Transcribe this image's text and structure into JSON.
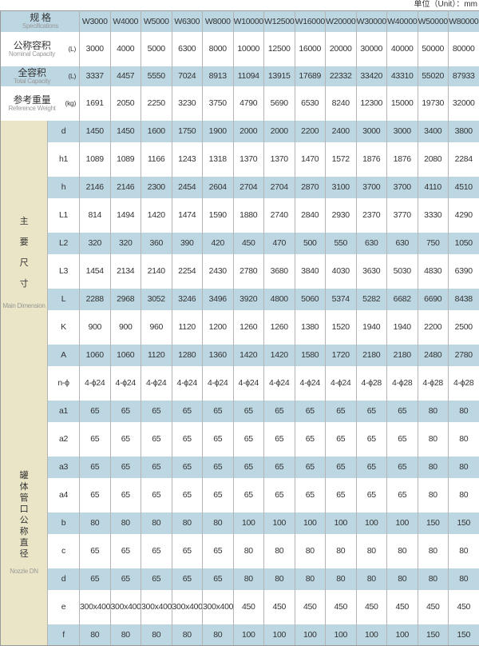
{
  "unit_note": "单位（Unit）：mm",
  "header": {
    "label_zh": "规 格",
    "label_en": "Specifications",
    "models": [
      "W3000",
      "W4000",
      "W5000",
      "W6300",
      "W8000",
      "W10000",
      "W12500",
      "W16000",
      "W20000",
      "W30000",
      "W40000",
      "W50000",
      "W80000"
    ]
  },
  "top_rows": [
    {
      "zh": "公称容积",
      "en": "Nominal Capacity",
      "unit": "(L)",
      "values": [
        "3000",
        "4000",
        "5000",
        "6300",
        "8000",
        "10000",
        "12500",
        "16000",
        "20000",
        "30000",
        "40000",
        "50000",
        "80000"
      ]
    },
    {
      "zh": "全容积",
      "en": "Total Capacity",
      "unit": "(L)",
      "values": [
        "3337",
        "4457",
        "5550",
        "7024",
        "8913",
        "11094",
        "13915",
        "17689",
        "22332",
        "33420",
        "43310",
        "55020",
        "87933"
      ]
    },
    {
      "zh": "参考重量",
      "en": "Reference Weight",
      "unit": "(kg)",
      "values": [
        "1691",
        "2050",
        "2250",
        "3230",
        "3750",
        "4790",
        "5690",
        "6530",
        "8240",
        "12300",
        "15000",
        "19730",
        "32000"
      ]
    }
  ],
  "groups": [
    {
      "zh_chars": [
        "主",
        "要",
        "尺",
        "寸"
      ],
      "en": "Main Dimension",
      "rows": [
        {
          "label": "d",
          "values": [
            "1450",
            "1450",
            "1600",
            "1750",
            "1900",
            "2000",
            "2000",
            "2200",
            "2400",
            "3000",
            "3000",
            "3400",
            "3800"
          ]
        },
        {
          "label": "h1",
          "values": [
            "1089",
            "1089",
            "1166",
            "1243",
            "1318",
            "1370",
            "1370",
            "1470",
            "1572",
            "1876",
            "1876",
            "2080",
            "2284"
          ]
        },
        {
          "label": "h",
          "values": [
            "2146",
            "2146",
            "2300",
            "2454",
            "2604",
            "2704",
            "2704",
            "2870",
            "3100",
            "3700",
            "3700",
            "4110",
            "4510"
          ]
        },
        {
          "label": "L1",
          "values": [
            "814",
            "1494",
            "1420",
            "1474",
            "1590",
            "1880",
            "2740",
            "2840",
            "2930",
            "2370",
            "3770",
            "3330",
            "4290"
          ]
        },
        {
          "label": "L2",
          "values": [
            "320",
            "320",
            "360",
            "390",
            "420",
            "450",
            "470",
            "500",
            "550",
            "630",
            "630",
            "750",
            "1050"
          ]
        },
        {
          "label": "L3",
          "values": [
            "1454",
            "2134",
            "2140",
            "2254",
            "2430",
            "2780",
            "3680",
            "3840",
            "4030",
            "3630",
            "5030",
            "4830",
            "6390"
          ]
        },
        {
          "label": "L",
          "values": [
            "2288",
            "2968",
            "3052",
            "3246",
            "3496",
            "3920",
            "4800",
            "5060",
            "5374",
            "5282",
            "6682",
            "6690",
            "8438"
          ]
        },
        {
          "label": "K",
          "values": [
            "900",
            "900",
            "960",
            "1120",
            "1200",
            "1260",
            "1260",
            "1380",
            "1520",
            "1940",
            "1940",
            "2200",
            "2500"
          ]
        },
        {
          "label": "A",
          "values": [
            "1060",
            "1060",
            "1120",
            "1280",
            "1360",
            "1420",
            "1420",
            "1580",
            "1720",
            "2180",
            "2180",
            "2480",
            "2780"
          ]
        },
        {
          "label": "n-ϕ",
          "values": [
            "4-ϕ24",
            "4-ϕ24",
            "4-ϕ24",
            "4-ϕ24",
            "4-ϕ24",
            "4-ϕ24",
            "4-ϕ24",
            "4-ϕ24",
            "4-ϕ24",
            "4-ϕ28",
            "4-ϕ28",
            "4-ϕ28",
            "4-ϕ28"
          ]
        }
      ]
    },
    {
      "zh_chars": [
        "罐",
        "体",
        "管",
        "口",
        "公",
        "称",
        "直",
        "径"
      ],
      "en": "Nozzle DN",
      "rows": [
        {
          "label": "a1",
          "values": [
            "65",
            "65",
            "65",
            "65",
            "65",
            "65",
            "65",
            "65",
            "65",
            "65",
            "65",
            "80",
            "80"
          ]
        },
        {
          "label": "a2",
          "values": [
            "65",
            "65",
            "65",
            "65",
            "65",
            "65",
            "65",
            "65",
            "65",
            "65",
            "65",
            "80",
            "80"
          ]
        },
        {
          "label": "a3",
          "values": [
            "65",
            "65",
            "65",
            "65",
            "65",
            "65",
            "65",
            "65",
            "65",
            "65",
            "65",
            "80",
            "80"
          ]
        },
        {
          "label": "a4",
          "values": [
            "65",
            "65",
            "65",
            "65",
            "65",
            "65",
            "65",
            "65",
            "65",
            "65",
            "65",
            "80",
            "80"
          ]
        },
        {
          "label": "b",
          "values": [
            "80",
            "80",
            "80",
            "80",
            "80",
            "100",
            "100",
            "100",
            "100",
            "100",
            "100",
            "150",
            "150"
          ]
        },
        {
          "label": "c",
          "values": [
            "65",
            "65",
            "65",
            "65",
            "65",
            "80",
            "80",
            "80",
            "80",
            "80",
            "80",
            "80",
            "80"
          ]
        },
        {
          "label": "d",
          "values": [
            "65",
            "65",
            "65",
            "65",
            "65",
            "80",
            "80",
            "80",
            "80",
            "80",
            "80",
            "80",
            "80"
          ]
        },
        {
          "label": "e",
          "values": [
            "300x400",
            "300x400",
            "300x400",
            "300x400",
            "300x400",
            "450",
            "450",
            "450",
            "450",
            "450",
            "450",
            "450",
            "450"
          ]
        },
        {
          "label": "f",
          "values": [
            "80",
            "80",
            "80",
            "80",
            "80",
            "100",
            "100",
            "100",
            "100",
            "100",
            "100",
            "150",
            "150"
          ]
        }
      ]
    }
  ],
  "colors": {
    "row_blue": "#bcd6e2",
    "group_beige": "#e9e5c6",
    "border": "#b4b4b4"
  }
}
